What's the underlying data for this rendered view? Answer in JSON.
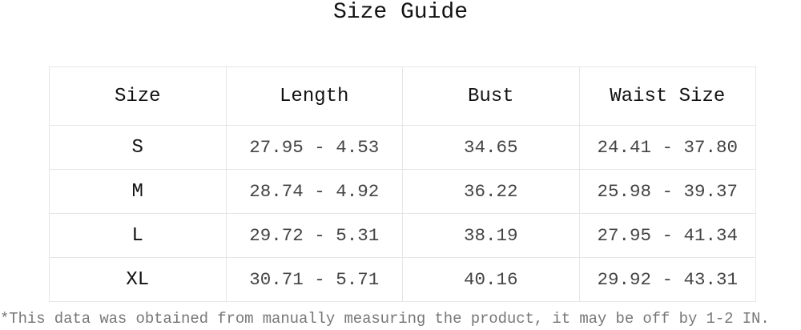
{
  "title": "Size Guide",
  "table": {
    "headers": [
      "Size",
      "Length",
      "Bust",
      "Waist Size"
    ],
    "rows": [
      [
        "S",
        "27.95 - 4.53",
        "34.65",
        "24.41 - 37.80"
      ],
      [
        "M",
        "28.74 - 4.92",
        "36.22",
        "25.98 - 39.37"
      ],
      [
        "L",
        "29.72 - 5.31",
        "38.19",
        "27.95 - 41.34"
      ],
      [
        "XL",
        "30.71 - 5.71",
        "40.16",
        "29.92 - 43.31"
      ]
    ]
  },
  "note": "*This data was obtained from manually measuring the product, it may be off by 1-2 IN."
}
